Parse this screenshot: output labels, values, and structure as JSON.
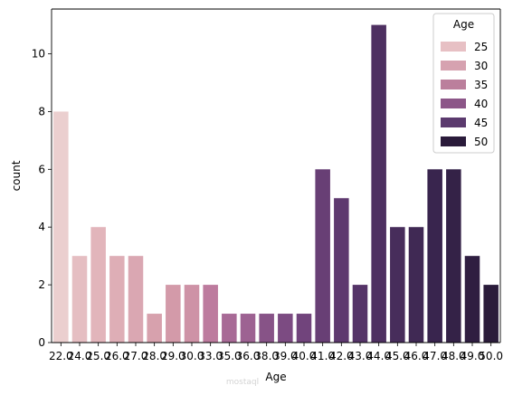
{
  "chart_data": {
    "type": "bar",
    "xlabel": "Age",
    "ylabel": "count",
    "categories": [
      "22.0",
      "24.0",
      "25.0",
      "26.0",
      "27.0",
      "28.0",
      "29.0",
      "30.0",
      "33.0",
      "35.0",
      "36.0",
      "38.0",
      "39.0",
      "40.0",
      "41.0",
      "42.0",
      "43.0",
      "44.0",
      "45.0",
      "46.0",
      "47.0",
      "48.0",
      "49.0",
      "50.0"
    ],
    "values": [
      8,
      3,
      4,
      3,
      3,
      1,
      2,
      2,
      2,
      1,
      1,
      1,
      1,
      1,
      6,
      5,
      2,
      11,
      4,
      4,
      6,
      6,
      3,
      2
    ],
    "ylim": [
      0,
      11.55
    ],
    "yticks": [
      0,
      2,
      4,
      6,
      8,
      10
    ],
    "hue_range": [
      22,
      50
    ],
    "hue_colors": [
      "#ebcfcf",
      "#e0b1b8",
      "#d39aa9",
      "#c27fa0",
      "#9d6292",
      "#76477f",
      "#553468",
      "#3c2751",
      "#2a1b3a"
    ],
    "legend": {
      "title": "Age",
      "position": "top-right",
      "entries": [
        {
          "label": "25",
          "color": "#e7c0c4"
        },
        {
          "label": "30",
          "color": "#d6a2b0"
        },
        {
          "label": "35",
          "color": "#bb7f9c"
        },
        {
          "label": "40",
          "color": "#8c5688"
        },
        {
          "label": "45",
          "color": "#5b3a6e"
        },
        {
          "label": "50",
          "color": "#2a1b3a"
        }
      ]
    },
    "grid": false
  },
  "watermark": "mostaql"
}
